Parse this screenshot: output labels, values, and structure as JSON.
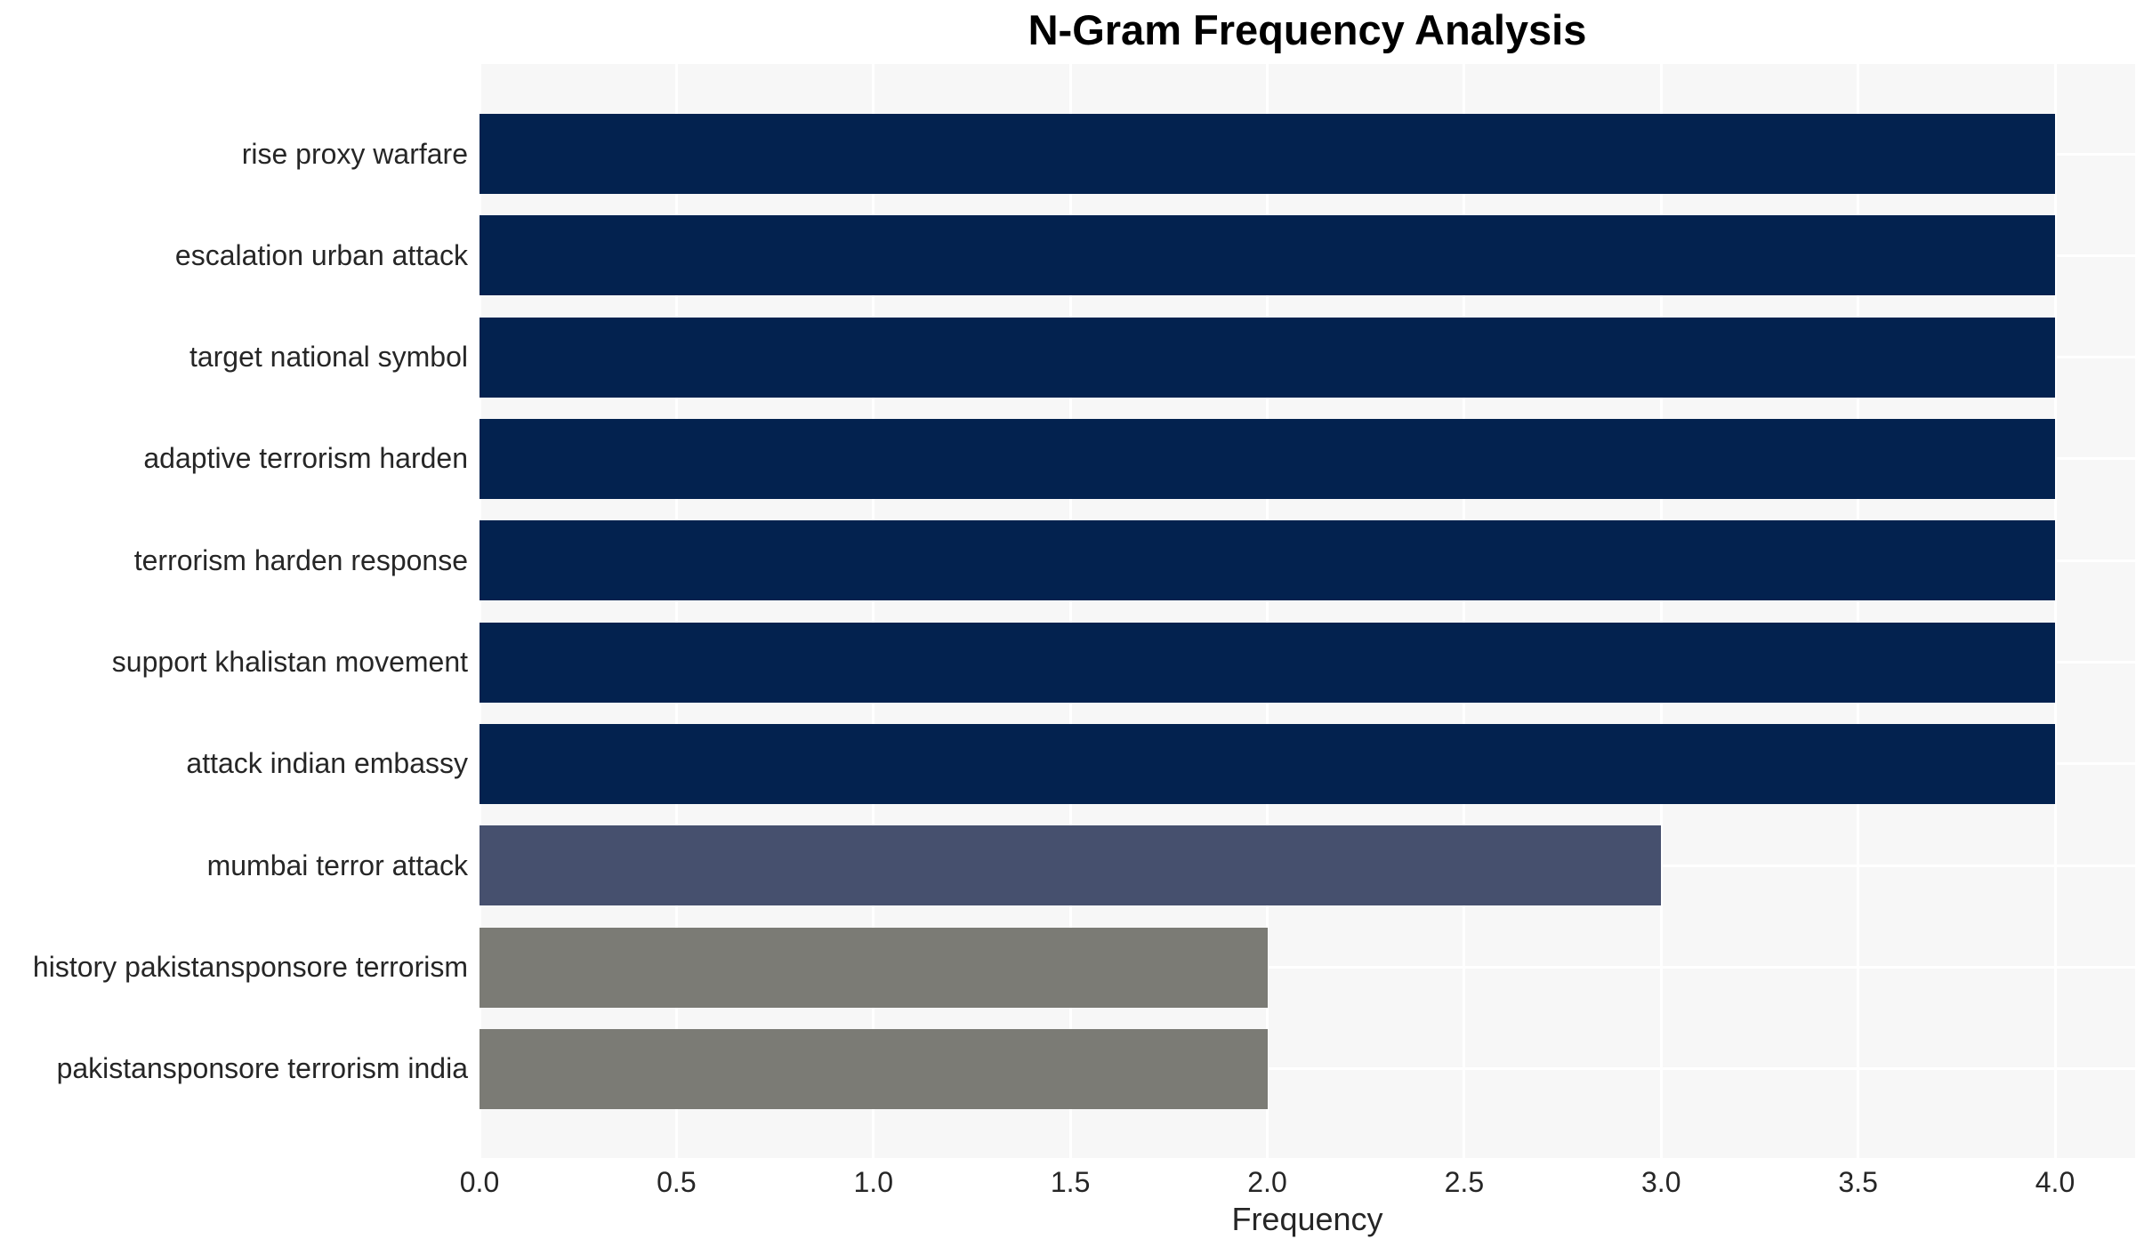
{
  "title": "N-Gram Frequency Analysis",
  "chart_data": {
    "type": "bar",
    "orientation": "horizontal",
    "title": "N-Gram Frequency Analysis",
    "xlabel": "Frequency",
    "ylabel": "",
    "categories": [
      "rise proxy warfare",
      "escalation urban attack",
      "target national symbol",
      "adaptive terrorism harden",
      "terrorism harden response",
      "support khalistan movement",
      "attack indian embassy",
      "mumbai terror attack",
      "history pakistansponsore terrorism",
      "pakistansponsore terrorism india"
    ],
    "values": [
      4,
      4,
      4,
      4,
      4,
      4,
      4,
      3,
      2,
      2
    ],
    "bar_colors": [
      "#03224f",
      "#03224f",
      "#03224f",
      "#03224f",
      "#03224f",
      "#03224f",
      "#03224f",
      "#46506e",
      "#7b7b75",
      "#7b7b75"
    ],
    "xlim": [
      0,
      4.2
    ],
    "xticks": [
      0.0,
      0.5,
      1.0,
      1.5,
      2.0,
      2.5,
      3.0,
      3.5,
      4.0
    ],
    "xtick_labels": [
      "0.0",
      "0.5",
      "1.0",
      "1.5",
      "2.0",
      "2.5",
      "3.0",
      "3.5",
      "4.0"
    ],
    "grid": true,
    "legend": false,
    "plot_background": "#f7f7f7",
    "grid_color": "#ffffff",
    "text_color": "#262626",
    "title_color": "#000000"
  }
}
